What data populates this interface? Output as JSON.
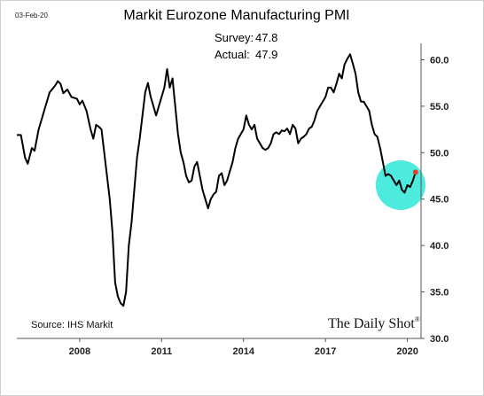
{
  "date_stamp": "03-Feb-20",
  "source": "Source: IHS Markit",
  "brand": "The Daily Shot",
  "brand_mark": "®",
  "chart_data": {
    "type": "line",
    "title": "Markit Eurozone Manufacturing PMI",
    "annotations": {
      "survey_label": "Survey:",
      "survey_value": "47.8",
      "actual_label": "Actual:",
      "actual_value": "47.9"
    },
    "xlabel": "",
    "ylabel": "",
    "x_ticks": [
      "2008",
      "2011",
      "2014",
      "2017",
      "2020"
    ],
    "y_ticks": [
      "30.0",
      "35.0",
      "40.0",
      "45.0",
      "50.0",
      "55.0",
      "60.0"
    ],
    "ylim": [
      30,
      61
    ],
    "xlim": [
      2005.7,
      2020.5
    ],
    "y_axis_position": "right",
    "grid": false,
    "highlight": {
      "center": [
        2019.75,
        46.5
      ],
      "color": "#2ee8d8"
    },
    "last_point_color": "#e03c31",
    "series_color": "#000000",
    "series": [
      {
        "values": [
          [
            2005.7,
            51.9
          ],
          [
            2005.85,
            51.9
          ],
          [
            2006.0,
            49.5
          ],
          [
            2006.1,
            48.8
          ],
          [
            2006.25,
            50.5
          ],
          [
            2006.35,
            50.2
          ],
          [
            2006.5,
            52.5
          ],
          [
            2006.7,
            54.5
          ],
          [
            2006.9,
            56.5
          ],
          [
            2007.1,
            57.2
          ],
          [
            2007.2,
            57.7
          ],
          [
            2007.3,
            57.4
          ],
          [
            2007.4,
            56.4
          ],
          [
            2007.55,
            56.8
          ],
          [
            2007.7,
            56.0
          ],
          [
            2007.9,
            55.8
          ],
          [
            2008.0,
            55.2
          ],
          [
            2008.1,
            55.6
          ],
          [
            2008.25,
            54.5
          ],
          [
            2008.4,
            52.5
          ],
          [
            2008.5,
            51.5
          ],
          [
            2008.6,
            53.0
          ],
          [
            2008.7,
            52.8
          ],
          [
            2008.8,
            52.5
          ],
          [
            2008.9,
            50.0
          ],
          [
            2009.0,
            47.5
          ],
          [
            2009.1,
            45.0
          ],
          [
            2009.2,
            41.5
          ],
          [
            2009.3,
            36.0
          ],
          [
            2009.4,
            34.5
          ],
          [
            2009.5,
            33.8
          ],
          [
            2009.6,
            33.5
          ],
          [
            2009.7,
            35.0
          ],
          [
            2009.8,
            40.0
          ],
          [
            2009.9,
            42.5
          ],
          [
            2010.0,
            46.0
          ],
          [
            2010.1,
            49.5
          ],
          [
            2010.2,
            51.5
          ],
          [
            2010.3,
            54.0
          ],
          [
            2010.4,
            56.5
          ],
          [
            2010.5,
            57.5
          ],
          [
            2010.6,
            56.0
          ],
          [
            2010.7,
            55.0
          ],
          [
            2010.8,
            54.0
          ],
          [
            2010.9,
            55.0
          ],
          [
            2011.0,
            56.0
          ],
          [
            2011.1,
            57.0
          ],
          [
            2011.2,
            59.0
          ],
          [
            2011.3,
            57.0
          ],
          [
            2011.4,
            58.0
          ],
          [
            2011.5,
            55.0
          ],
          [
            2011.6,
            52.0
          ],
          [
            2011.7,
            50.0
          ],
          [
            2011.8,
            49.0
          ],
          [
            2011.9,
            47.5
          ],
          [
            2012.0,
            46.8
          ],
          [
            2012.1,
            47.0
          ],
          [
            2012.2,
            48.5
          ],
          [
            2012.3,
            49.0
          ],
          [
            2012.4,
            47.5
          ],
          [
            2012.5,
            46.0
          ],
          [
            2012.6,
            45.0
          ],
          [
            2012.7,
            44.0
          ],
          [
            2012.8,
            45.0
          ],
          [
            2012.9,
            45.5
          ],
          [
            2013.0,
            45.8
          ],
          [
            2013.1,
            47.5
          ],
          [
            2013.2,
            47.8
          ],
          [
            2013.3,
            46.5
          ],
          [
            2013.4,
            47.0
          ],
          [
            2013.5,
            48.0
          ],
          [
            2013.6,
            49.0
          ],
          [
            2013.7,
            50.5
          ],
          [
            2013.8,
            51.5
          ],
          [
            2013.9,
            52.0
          ],
          [
            2014.0,
            52.5
          ],
          [
            2014.1,
            54.0
          ],
          [
            2014.2,
            53.0
          ],
          [
            2014.3,
            52.5
          ],
          [
            2014.4,
            53.0
          ],
          [
            2014.5,
            51.5
          ],
          [
            2014.6,
            51.0
          ],
          [
            2014.7,
            50.5
          ],
          [
            2014.8,
            50.3
          ],
          [
            2014.9,
            50.5
          ],
          [
            2015.0,
            51.0
          ],
          [
            2015.1,
            52.0
          ],
          [
            2015.2,
            52.2
          ],
          [
            2015.3,
            52.0
          ],
          [
            2015.4,
            52.4
          ],
          [
            2015.5,
            52.3
          ],
          [
            2015.6,
            52.6
          ],
          [
            2015.7,
            52.0
          ],
          [
            2015.8,
            53.0
          ],
          [
            2015.9,
            52.6
          ],
          [
            2016.0,
            51.0
          ],
          [
            2016.1,
            51.5
          ],
          [
            2016.2,
            51.7
          ],
          [
            2016.3,
            52.0
          ],
          [
            2016.4,
            52.6
          ],
          [
            2016.5,
            52.8
          ],
          [
            2016.6,
            53.5
          ],
          [
            2016.7,
            54.5
          ],
          [
            2016.8,
            55.0
          ],
          [
            2016.9,
            55.5
          ],
          [
            2017.0,
            56.0
          ],
          [
            2017.1,
            57.0
          ],
          [
            2017.2,
            57.0
          ],
          [
            2017.3,
            56.5
          ],
          [
            2017.4,
            57.4
          ],
          [
            2017.5,
            58.5
          ],
          [
            2017.6,
            58.0
          ],
          [
            2017.7,
            59.5
          ],
          [
            2017.8,
            60.1
          ],
          [
            2017.9,
            60.6
          ],
          [
            2018.0,
            59.6
          ],
          [
            2018.1,
            58.5
          ],
          [
            2018.2,
            56.5
          ],
          [
            2018.3,
            55.5
          ],
          [
            2018.4,
            55.5
          ],
          [
            2018.5,
            55.0
          ],
          [
            2018.6,
            54.5
          ],
          [
            2018.7,
            53.0
          ],
          [
            2018.8,
            52.0
          ],
          [
            2018.9,
            51.7
          ],
          [
            2019.0,
            50.5
          ],
          [
            2019.1,
            49.0
          ],
          [
            2019.2,
            47.5
          ],
          [
            2019.3,
            47.7
          ],
          [
            2019.4,
            47.5
          ],
          [
            2019.5,
            47.0
          ],
          [
            2019.6,
            46.5
          ],
          [
            2019.7,
            47.0
          ],
          [
            2019.8,
            46.0
          ],
          [
            2019.9,
            45.7
          ],
          [
            2020.0,
            46.5
          ],
          [
            2020.1,
            46.3
          ],
          [
            2020.2,
            47.0
          ],
          [
            2020.3,
            47.9
          ]
        ]
      }
    ]
  }
}
